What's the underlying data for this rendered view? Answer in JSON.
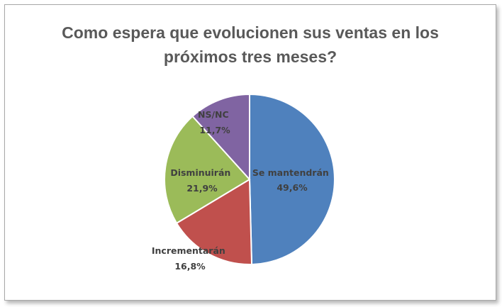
{
  "chart_data": {
    "type": "pie",
    "title_lines": [
      "Como espera que evolucionen sus ventas en los",
      "próximos tres meses?"
    ],
    "slices": [
      {
        "label": "Se mantendrán",
        "value": 49.6,
        "value_label": "49,6%",
        "color": "#4f81bd"
      },
      {
        "label": "Incrementarán",
        "value": 16.8,
        "value_label": "16,8%",
        "color": "#c0504d"
      },
      {
        "label": "Disminuirán",
        "value": 21.9,
        "value_label": "21,9%",
        "color": "#9bbb59"
      },
      {
        "label": "NS/NC",
        "value": 11.7,
        "value_label": "11,7%",
        "color": "#8064a2"
      }
    ],
    "start_angle": "12 o'clock",
    "direction": "clockwise",
    "legend": "none"
  }
}
